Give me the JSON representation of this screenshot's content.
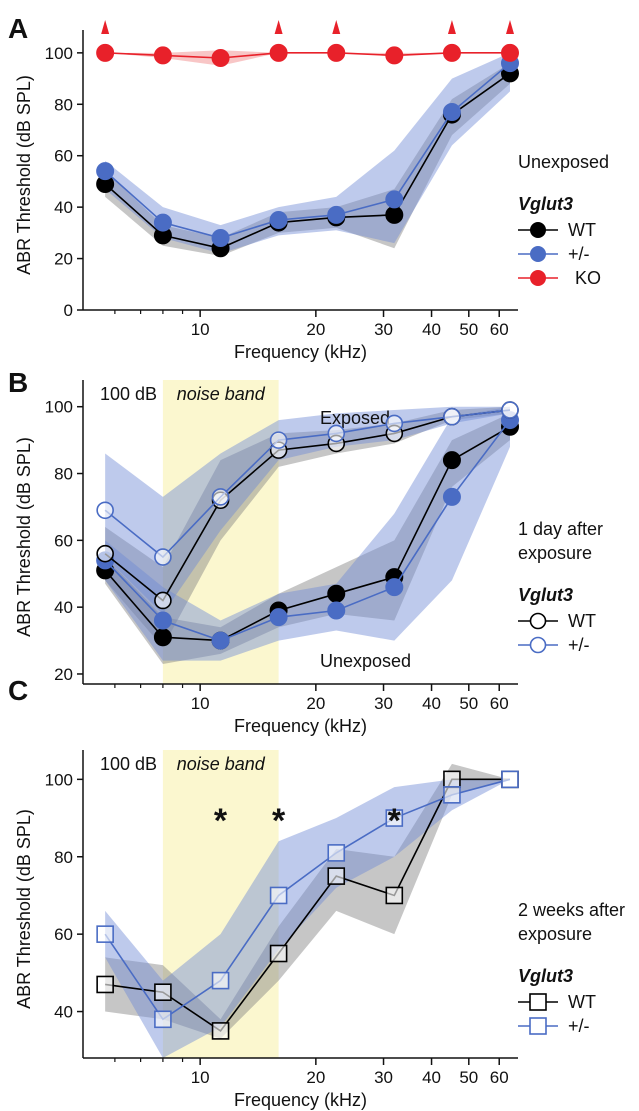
{
  "chart_data": [
    {
      "panel_label": "A",
      "type": "line",
      "xlabel": "Frequency (kHz)",
      "ylabel": "ABR Threshold (dB SPL)",
      "xscale": "log",
      "xlim": [
        5.2,
        64
      ],
      "ylim": [
        0,
        105
      ],
      "xticks": [
        10,
        20,
        30,
        40,
        50,
        60
      ],
      "yticks": [
        0,
        20,
        40,
        60,
        80,
        100
      ],
      "legend_condition": "Unexposed",
      "legend_title": "Vglut3",
      "legend_position": "right",
      "marker": "filled-circle",
      "x": [
        5.66,
        8,
        11.3,
        16,
        22.6,
        32,
        45.2,
        64
      ],
      "series": [
        {
          "name": "WT",
          "color": "#000000",
          "band_color": "#808080",
          "values": [
            49,
            29,
            24,
            34,
            36,
            37,
            76,
            92
          ],
          "band_low": [
            44,
            25,
            21,
            30,
            32,
            24,
            68,
            88
          ],
          "band_high": [
            54,
            33,
            28,
            38,
            40,
            47,
            82,
            96
          ]
        },
        {
          "name": "+/-",
          "color": "#4a6cc4",
          "band_color": "#6f8ad4",
          "values": [
            54,
            34,
            28,
            35,
            37,
            43,
            77,
            96
          ],
          "band_low": [
            47,
            28,
            22,
            29,
            31,
            26,
            64,
            85
          ],
          "band_high": [
            58,
            40,
            33,
            40,
            44,
            62,
            90,
            100
          ]
        },
        {
          "name": "KO",
          "color": "#e8212a",
          "band_color": "#f08080",
          "values": [
            100,
            99,
            98,
            100,
            100,
            99,
            100,
            100
          ],
          "band_low": [
            100,
            98,
            95,
            100,
            100,
            99,
            100,
            100
          ],
          "band_high": [
            100,
            100,
            101,
            100,
            100,
            100,
            100,
            100
          ]
        }
      ],
      "ceiling_markers_x": [
        5.66,
        16,
        22.6,
        45.2,
        64
      ]
    },
    {
      "panel_label": "B",
      "type": "line",
      "xlabel": "Frequency (kHz)",
      "ylabel": "ABR Threshold (dB SPL)",
      "xscale": "log",
      "xlim": [
        5.2,
        64
      ],
      "ylim": [
        17,
        105
      ],
      "xticks": [
        10,
        20,
        30,
        40,
        50,
        60
      ],
      "yticks": [
        20,
        40,
        60,
        80,
        100
      ],
      "noise_band": [
        8,
        16
      ],
      "annotations": {
        "level": "100 dB",
        "noise_band": "noise band",
        "exposed": "Exposed",
        "unexposed": "Unexposed"
      },
      "legend_condition": "1 day after\nexposure",
      "legend_title": "Vglut3",
      "legend_position": "right",
      "x": [
        5.66,
        8,
        11.3,
        16,
        22.6,
        32,
        45.2,
        64
      ],
      "series": [
        {
          "name": "WT",
          "group": "Exposed",
          "marker": "open-circle",
          "color": "#000000",
          "band_color": "#808080",
          "values": [
            56,
            42,
            72,
            87,
            89,
            92,
            97,
            99
          ],
          "band_low": [
            48,
            28,
            60,
            82,
            86,
            89,
            96,
            98
          ],
          "band_high": [
            64,
            52,
            84,
            92,
            93,
            95,
            99,
            100
          ]
        },
        {
          "name": "+/-",
          "group": "Exposed",
          "marker": "open-circle",
          "color": "#4a6cc4",
          "band_color": "#6f8ad4",
          "values": [
            69,
            55,
            73,
            90,
            92,
            95,
            97,
            99
          ],
          "band_low": [
            55,
            38,
            63,
            84,
            88,
            90,
            95,
            98
          ],
          "band_high": [
            86,
            73,
            86,
            96,
            98,
            99,
            100,
            100
          ]
        },
        {
          "name": "WT",
          "group": "Unexposed",
          "marker": "filled-circle",
          "color": "#000000",
          "band_color": "#808080",
          "values": [
            51,
            31,
            30,
            39,
            44,
            49,
            84,
            94
          ],
          "band_low": [
            47,
            23,
            26,
            34,
            38,
            36,
            76,
            90
          ],
          "band_high": [
            55,
            37,
            34,
            44,
            52,
            60,
            90,
            98
          ]
        },
        {
          "name": "+/-",
          "group": "Unexposed",
          "marker": "filled-circle",
          "color": "#4a6cc4",
          "band_color": "#6f8ad4",
          "values": [
            54,
            36,
            30,
            37,
            39,
            46,
            73,
            96
          ],
          "band_low": [
            48,
            24,
            24,
            30,
            33,
            30,
            48,
            88
          ],
          "band_high": [
            60,
            46,
            36,
            44,
            47,
            68,
            97,
            100
          ]
        }
      ]
    },
    {
      "panel_label": "C",
      "type": "line",
      "xlabel": "Frequency (kHz)",
      "ylabel": "ABR Threshold (dB SPL)",
      "xscale": "log",
      "xlim": [
        5.2,
        64
      ],
      "ylim": [
        28,
        105
      ],
      "xticks": [
        10,
        20,
        30,
        40,
        50,
        60
      ],
      "yticks": [
        40,
        60,
        80,
        100
      ],
      "noise_band": [
        8,
        16
      ],
      "annotations": {
        "level": "100 dB",
        "noise_band": "noise band"
      },
      "significance_marks": [
        {
          "x": 11.3,
          "label": "*"
        },
        {
          "x": 16,
          "label": "*"
        },
        {
          "x": 32,
          "label": "*"
        }
      ],
      "legend_condition": "2 weeks after\nexposure",
      "legend_title": "Vglut3",
      "legend_position": "right",
      "marker": "open-square",
      "x": [
        5.66,
        8,
        11.3,
        16,
        22.6,
        32,
        45.2,
        64
      ],
      "series": [
        {
          "name": "WT",
          "color": "#000000",
          "band_color": "#808080",
          "values": [
            47,
            45,
            35,
            55,
            75,
            70,
            100,
            100
          ],
          "band_low": [
            40,
            38,
            33,
            48,
            66,
            60,
            96,
            100
          ],
          "band_high": [
            54,
            52,
            38,
            62,
            82,
            80,
            104,
            100
          ]
        },
        {
          "name": "+/-",
          "color": "#4a6cc4",
          "band_color": "#6f8ad4",
          "values": [
            60,
            38,
            48,
            70,
            81,
            90,
            96,
            100
          ],
          "band_low": [
            54,
            28,
            36,
            56,
            72,
            80,
            92,
            100
          ],
          "band_high": [
            66,
            48,
            60,
            84,
            90,
            98,
            100,
            100
          ]
        }
      ]
    }
  ]
}
